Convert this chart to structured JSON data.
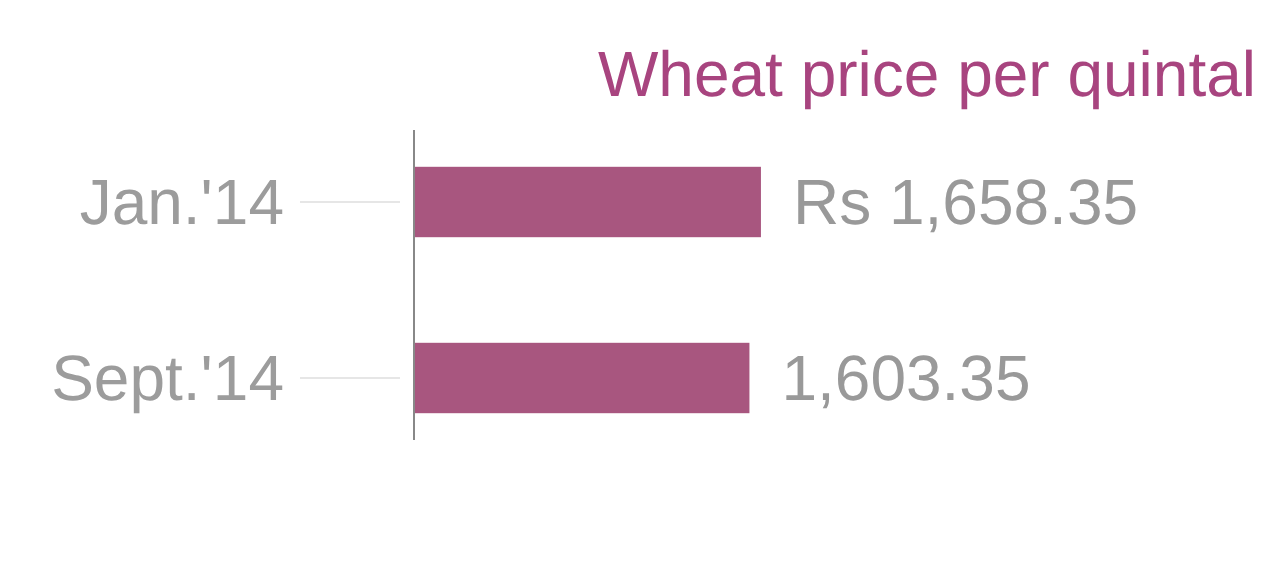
{
  "chart_data": {
    "type": "bar",
    "orientation": "horizontal",
    "title": "Wheat price per quintal",
    "categories": [
      "Jan.'14",
      "Sept.'14"
    ],
    "values": [
      1658.35,
      1603.35
    ],
    "value_labels": [
      "Rs 1,658.35",
      "1,603.35"
    ],
    "color": "#a8567f",
    "grid": false
  }
}
